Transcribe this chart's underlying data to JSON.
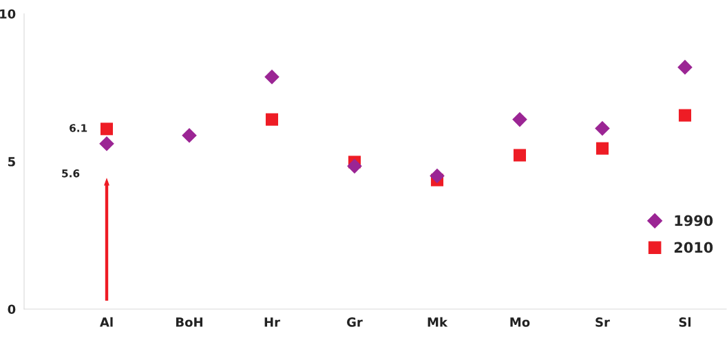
{
  "chart_data": {
    "type": "scatter",
    "categories": [
      "Al",
      "BoH",
      "Hr",
      "Gr",
      "Mk",
      "Mo",
      "Sr",
      "Sl"
    ],
    "series": [
      {
        "name": "1990",
        "color": "#9b2594",
        "marker": "diamond",
        "values": [
          5.6,
          5.88,
          7.86,
          4.84,
          4.51,
          6.42,
          6.12,
          8.19
        ],
        "value_labels": [
          "5.6",
          null,
          null,
          null,
          null,
          null,
          null,
          null
        ]
      },
      {
        "name": "2010",
        "color": "#ee1c25",
        "marker": "square",
        "values": [
          6.1,
          null,
          6.42,
          4.98,
          4.37,
          5.21,
          5.44,
          6.56
        ],
        "value_labels": [
          "6.1",
          null,
          null,
          null,
          null,
          null,
          null,
          null
        ]
      }
    ],
    "ylim": [
      0,
      10
    ],
    "yticks": [
      0,
      5,
      {
        "value": 10,
        "label": "10"
      }
    ],
    "grid": false,
    "legend": "right"
  }
}
